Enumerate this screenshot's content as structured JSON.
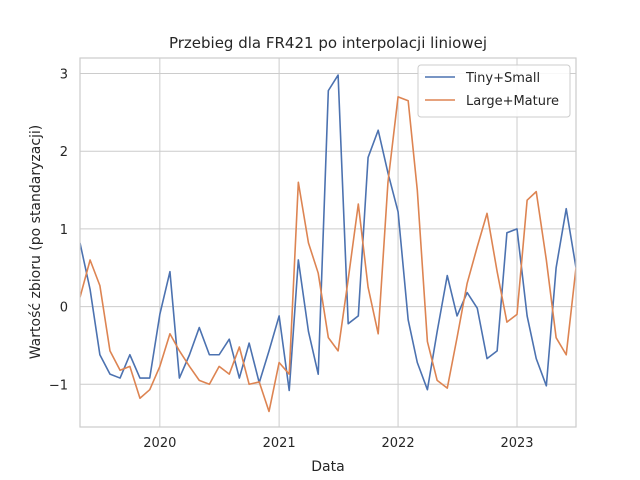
{
  "chart_data": {
    "type": "line",
    "title": "Przebieg dla FR421 po interpolacji liniowej",
    "xlabel": "Data",
    "ylabel": "Wartość zbioru (po standaryzacji)",
    "x_tick_labels": [
      "2020",
      "2021",
      "2022",
      "2023"
    ],
    "x_tick_dates": [
      "2020-01-01",
      "2021-01-01",
      "2022-01-01",
      "2023-01-01"
    ],
    "y_tick_labels": [
      "−1",
      "0",
      "1",
      "2",
      "3"
    ],
    "y_ticks": [
      -1,
      0,
      1,
      2,
      3
    ],
    "xlim": [
      "2019-05-01",
      "2023-07-01"
    ],
    "ylim": [
      -1.55,
      3.2
    ],
    "grid": true,
    "legend_position": "top-right",
    "x": [
      "2019-05-01",
      "2019-06-01",
      "2019-07-01",
      "2019-08-01",
      "2019-09-01",
      "2019-10-01",
      "2019-11-01",
      "2019-12-01",
      "2020-01-01",
      "2020-02-01",
      "2020-03-01",
      "2020-04-01",
      "2020-05-01",
      "2020-06-01",
      "2020-07-01",
      "2020-08-01",
      "2020-09-01",
      "2020-10-01",
      "2020-11-01",
      "2020-12-01",
      "2021-01-01",
      "2021-02-01",
      "2021-03-01",
      "2021-04-01",
      "2021-05-01",
      "2021-06-01",
      "2021-07-01",
      "2021-08-01",
      "2021-09-01",
      "2021-10-01",
      "2021-11-01",
      "2021-12-01",
      "2022-01-01",
      "2022-02-01",
      "2022-03-01",
      "2022-04-01",
      "2022-05-01",
      "2022-06-01",
      "2022-07-01",
      "2022-08-01",
      "2022-09-01",
      "2022-10-01",
      "2022-11-01",
      "2022-12-01",
      "2023-01-01",
      "2023-02-01",
      "2023-03-01",
      "2023-04-01",
      "2023-05-01",
      "2023-06-01",
      "2023-07-01"
    ],
    "series": [
      {
        "name": "Tiny+Small",
        "color": "#4c72b0",
        "values": [
          0.82,
          0.22,
          -0.62,
          -0.87,
          -0.92,
          -0.62,
          -0.92,
          -0.92,
          -0.1,
          0.45,
          -0.92,
          -0.62,
          -0.27,
          -0.62,
          -0.62,
          -0.42,
          -0.92,
          -0.47,
          -0.98,
          -0.57,
          -0.12,
          -1.08,
          0.6,
          -0.32,
          -0.87,
          2.78,
          2.98,
          -0.22,
          -0.12,
          1.92,
          2.27,
          1.72,
          1.22,
          -0.17,
          -0.72,
          -1.07,
          -0.32,
          0.4,
          -0.12,
          0.18,
          -0.02,
          -0.67,
          -0.57,
          0.95,
          1.0,
          -0.12,
          -0.67,
          -1.02,
          0.5,
          1.26,
          0.5
        ]
      },
      {
        "name": "Large+Mature",
        "color": "#dd8452",
        "values": [
          0.12,
          0.6,
          0.27,
          -0.57,
          -0.82,
          -0.77,
          -1.18,
          -1.07,
          -0.77,
          -0.35,
          -0.57,
          -0.77,
          -0.95,
          -1.0,
          -0.77,
          -0.87,
          -0.52,
          -1.0,
          -0.97,
          -1.35,
          -0.72,
          -0.87,
          1.6,
          0.82,
          0.43,
          -0.4,
          -0.57,
          0.35,
          1.32,
          0.25,
          -0.35,
          1.6,
          2.7,
          2.65,
          1.5,
          -0.45,
          -0.95,
          -1.05,
          -0.4,
          0.3,
          0.77,
          1.2,
          0.45,
          -0.2,
          -0.1,
          1.37,
          1.48,
          0.6,
          -0.4,
          -0.62,
          0.5
        ]
      }
    ]
  }
}
